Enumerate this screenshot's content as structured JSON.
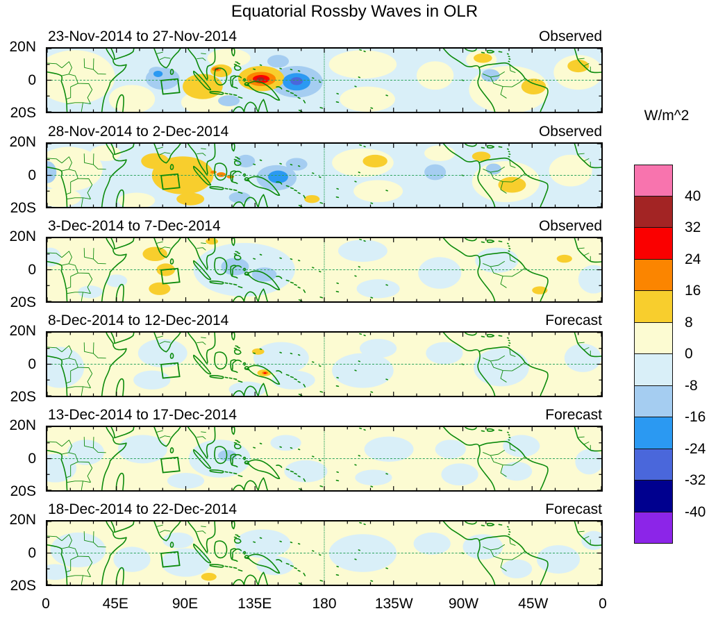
{
  "title": "Equatorial Rossby Waves in OLR",
  "colorbar": {
    "unit_label": "W/m^2",
    "tick_labels": [
      "40",
      "32",
      "24",
      "16",
      "8",
      "0",
      "-8",
      "-16",
      "-24",
      "-32",
      "-40"
    ],
    "colors": [
      "#F874AE",
      "#A32424",
      "#FA0000",
      "#FB8500",
      "#F8CE2D",
      "#FCFBD2",
      "#D9EFF8",
      "#A5CDF1",
      "#2B99F2",
      "#4A67DB",
      "#00008F",
      "#8C25E8"
    ]
  },
  "axes": {
    "x_tick_labels": [
      "0",
      "45E",
      "90E",
      "135E",
      "180",
      "135W",
      "90W",
      "45W",
      "0"
    ],
    "lon_ticks": [
      0,
      45,
      90,
      135,
      180,
      225,
      270,
      315,
      360
    ],
    "y_tick_labels": [
      "20N",
      "0",
      "20S"
    ]
  },
  "style": {
    "coast_color": "#0B8A0B",
    "dash_color": "#2BA35C",
    "tick_color": "#000000",
    "frame_color": "#000000"
  },
  "palette": {
    "p8": "#FCFBD2",
    "m8": "#D9EFF8",
    "p16": "#F8CE2D",
    "p24": "#FB8500",
    "p32": "#FA0000",
    "p40": "#A32424",
    "p48": "#F874AE",
    "m16": "#A5CDF1",
    "m24": "#2B99F2",
    "m32": "#4A67DB",
    "m40": "#00008F",
    "m48": "#8C25E8"
  },
  "monitor_box": [
    [
      74.0,
      -0.2
    ],
    [
      84.8,
      0.8
    ],
    [
      86.0,
      -7.8
    ],
    [
      75.2,
      -8.8
    ]
  ],
  "chart_data": {
    "type": "heatmap",
    "title": "Equatorial Rossby Waves in OLR",
    "unit": "W/m^2",
    "lon_range": [
      0,
      360
    ],
    "lat_range": [
      -20,
      20
    ],
    "contour_interval": 8,
    "levels": [
      -40,
      -32,
      -24,
      -16,
      -8,
      0,
      8,
      16,
      24,
      32,
      40
    ],
    "panels": [
      {
        "date_range": "23-Nov-2014 to 27-Nov-2014",
        "kind": "Observed",
        "base": "m8",
        "features": [
          [
            "p8",
            18,
            2,
            26,
            17
          ],
          [
            "p8",
            55,
            -12,
            15,
            9
          ],
          [
            "p8",
            105,
            -14,
            18,
            8
          ],
          [
            "p8",
            118,
            14,
            14,
            6
          ],
          [
            "p8",
            205,
            10,
            22,
            9
          ],
          [
            "p8",
            208,
            -12,
            18,
            8
          ],
          [
            "p8",
            252,
            3,
            12,
            9
          ],
          [
            "p8",
            300,
            -6,
            26,
            15
          ],
          [
            "p8",
            282,
            13,
            10,
            6
          ],
          [
            "p8",
            345,
            5,
            16,
            11
          ],
          [
            "m16",
            75,
            1,
            11,
            7
          ],
          [
            "m16",
            71,
            5.5,
            5,
            3
          ],
          [
            "m16",
            118,
            -13,
            7,
            3.5
          ],
          [
            "m16",
            150,
            12,
            7,
            4
          ],
          [
            "m16",
            162,
            -1,
            17,
            10
          ],
          [
            "m16",
            288,
            3,
            6,
            4
          ],
          [
            "p16",
            101,
            -4,
            13,
            8
          ],
          [
            "p16",
            113,
            6,
            7,
            4
          ],
          [
            "p16",
            316,
            -4,
            8,
            5
          ],
          [
            "p16",
            283,
            14,
            6,
            3
          ],
          [
            "p16",
            345,
            9,
            7,
            4
          ],
          [
            "p16",
            139,
            1,
            15,
            8
          ],
          [
            "m24",
            72,
            4,
            3,
            2
          ],
          [
            "m24",
            162,
            -1,
            9,
            5.5
          ],
          [
            "p24",
            139,
            0.8,
            9.5,
            4.5
          ],
          [
            "p24",
            110,
            7,
            3,
            1.4
          ],
          [
            "m32",
            162,
            -0.6,
            4,
            2.5
          ],
          [
            "p32",
            139,
            0.7,
            5.5,
            2.6
          ],
          [
            "p32",
            110,
            7,
            1.3,
            0.6
          ],
          [
            "p40",
            138.6,
            0.8,
            2.4,
            1.1
          ]
        ]
      },
      {
        "date_range": "28-Nov-2014 to 2-Dec-2014",
        "kind": "Observed",
        "base": "m8",
        "features": [
          [
            "p8",
            14,
            4,
            22,
            14
          ],
          [
            "p8",
            8,
            -14,
            14,
            6
          ],
          [
            "p8",
            38,
            14,
            10,
            5
          ],
          [
            "p8",
            58,
            -16,
            12,
            5
          ],
          [
            "p8",
            205,
            8,
            20,
            9
          ],
          [
            "p8",
            215,
            -10,
            16,
            7
          ],
          [
            "p8",
            298,
            -4,
            22,
            13
          ],
          [
            "p8",
            340,
            3,
            14,
            10
          ],
          [
            "p8",
            255,
            14,
            10,
            5
          ],
          [
            "m16",
            0,
            2,
            6,
            7
          ],
          [
            "m16",
            129,
            9,
            6,
            4
          ],
          [
            "m16",
            125,
            -14,
            7,
            3.5
          ],
          [
            "m16",
            149,
            -1.5,
            13,
            8
          ],
          [
            "m16",
            162,
            7,
            7,
            4
          ],
          [
            "m16",
            290,
            4,
            5,
            3.5
          ],
          [
            "m16",
            252,
            2,
            7,
            5
          ],
          [
            "p16",
            88,
            0,
            20,
            12
          ],
          [
            "p16",
            70,
            9,
            9,
            5
          ],
          [
            "p16",
            93,
            -15,
            9,
            4
          ],
          [
            "p16",
            213,
            9,
            8,
            4
          ],
          [
            "p16",
            302,
            -6,
            9,
            5
          ],
          [
            "p16",
            172,
            -15,
            5,
            2.5
          ],
          [
            "p16",
            282,
            12,
            6,
            3
          ],
          [
            "m24",
            150,
            -1,
            6.5,
            4
          ],
          [
            "p24",
            113,
            0.5,
            3,
            1.5
          ],
          [
            "p24",
            119,
            -0.8,
            2.4,
            1.2
          ],
          [
            "p24",
            108,
            2,
            2,
            1
          ]
        ]
      },
      {
        "date_range": "3-Dec-2014 to 7-Dec-2014",
        "kind": "Observed",
        "base": "p8",
        "features": [
          [
            "m8",
            128,
            0,
            33,
            17
          ],
          [
            "m8",
            205,
            12,
            16,
            7
          ],
          [
            "m8",
            215,
            -12,
            14,
            6
          ],
          [
            "m8",
            255,
            -2,
            14,
            10
          ],
          [
            "m8",
            292,
            6,
            14,
            8
          ],
          [
            "m8",
            355,
            -6,
            10,
            9
          ],
          [
            "m8",
            28,
            -14,
            8,
            4
          ],
          [
            "m8",
            45,
            -7,
            7,
            4
          ],
          [
            "m8",
            2,
            8,
            7,
            6
          ],
          [
            "m16",
            122,
            2,
            9,
            5.5
          ],
          [
            "m16",
            141,
            -3,
            8,
            4.5
          ],
          [
            "p16",
            70,
            10,
            8,
            4.5
          ],
          [
            "p16",
            77,
            0,
            6,
            4
          ],
          [
            "p16",
            73,
            -12,
            7,
            4
          ],
          [
            "p16",
            107,
            18,
            4,
            2
          ],
          [
            "p16",
            320,
            -13,
            5,
            2.5
          ],
          [
            "p16",
            336,
            7,
            5,
            2.5
          ]
        ]
      },
      {
        "date_range": "8-Dec-2014 to 12-Dec-2014",
        "kind": "Forecast",
        "base": "p8",
        "features": [
          [
            "m8",
            8,
            -2,
            16,
            13
          ],
          [
            "m8",
            75,
            7,
            16,
            9
          ],
          [
            "m8",
            68,
            -10,
            12,
            6
          ],
          [
            "m8",
            152,
            4,
            18,
            10
          ],
          [
            "m8",
            160,
            -10,
            14,
            6
          ],
          [
            "m8",
            205,
            -4,
            20,
            11
          ],
          [
            "m8",
            215,
            10,
            12,
            6
          ],
          [
            "m8",
            258,
            7,
            12,
            7
          ],
          [
            "m8",
            295,
            -2,
            18,
            12
          ],
          [
            "m8",
            348,
            4,
            12,
            9
          ],
          [
            "m8",
            130,
            -16,
            12,
            5
          ],
          [
            "p16",
            137,
            8,
            4,
            2
          ],
          [
            "p16",
            141,
            -5.5,
            4.5,
            2.2
          ],
          [
            "p24",
            141.5,
            -5.5,
            2,
            1
          ],
          [
            "p32",
            141.5,
            -5.6,
            0.9,
            0.5
          ]
        ]
      },
      {
        "date_range": "13-Dec-2014 to 17-Dec-2014",
        "kind": "Forecast",
        "base": "p8",
        "features": [
          [
            "m8",
            5,
            -6,
            14,
            9
          ],
          [
            "m8",
            25,
            4,
            12,
            8
          ],
          [
            "m8",
            62,
            6,
            16,
            9
          ],
          [
            "m8",
            90,
            -14,
            12,
            5
          ],
          [
            "m8",
            112,
            0,
            20,
            12
          ],
          [
            "m8",
            155,
            10,
            10,
            5
          ],
          [
            "m8",
            168,
            -8,
            14,
            7
          ],
          [
            "m8",
            212,
            -12,
            12,
            5
          ],
          [
            "m8",
            222,
            6,
            16,
            8
          ],
          [
            "m8",
            262,
            6,
            10,
            6
          ],
          [
            "m8",
            268,
            -10,
            12,
            7
          ],
          [
            "m8",
            305,
            -8,
            10,
            6
          ],
          [
            "m8",
            308,
            8,
            12,
            7
          ],
          [
            "m8",
            352,
            -2,
            9,
            8
          ],
          [
            "m16",
            117,
            2,
            6,
            3.5
          ]
        ]
      },
      {
        "date_range": "18-Dec-2014 to 22-Dec-2014",
        "kind": "Forecast",
        "base": "p8",
        "features": [
          [
            "m8",
            20,
            2,
            18,
            11
          ],
          [
            "m8",
            5,
            -12,
            10,
            5
          ],
          [
            "m8",
            55,
            -4,
            12,
            8
          ],
          [
            "m8",
            85,
            8,
            10,
            5
          ],
          [
            "m8",
            90,
            -6,
            16,
            9
          ],
          [
            "m8",
            140,
            6,
            18,
            9
          ],
          [
            "m8",
            148,
            -8,
            12,
            6
          ],
          [
            "m8",
            205,
            0,
            22,
            12
          ],
          [
            "m8",
            250,
            6,
            12,
            7
          ],
          [
            "m8",
            283,
            4,
            13,
            8
          ],
          [
            "m8",
            305,
            -10,
            10,
            6
          ],
          [
            "m8",
            332,
            -4,
            14,
            9
          ],
          [
            "m8",
            355,
            8,
            8,
            6
          ],
          [
            "p16",
            105,
            -15,
            5,
            2.5
          ]
        ]
      }
    ]
  }
}
